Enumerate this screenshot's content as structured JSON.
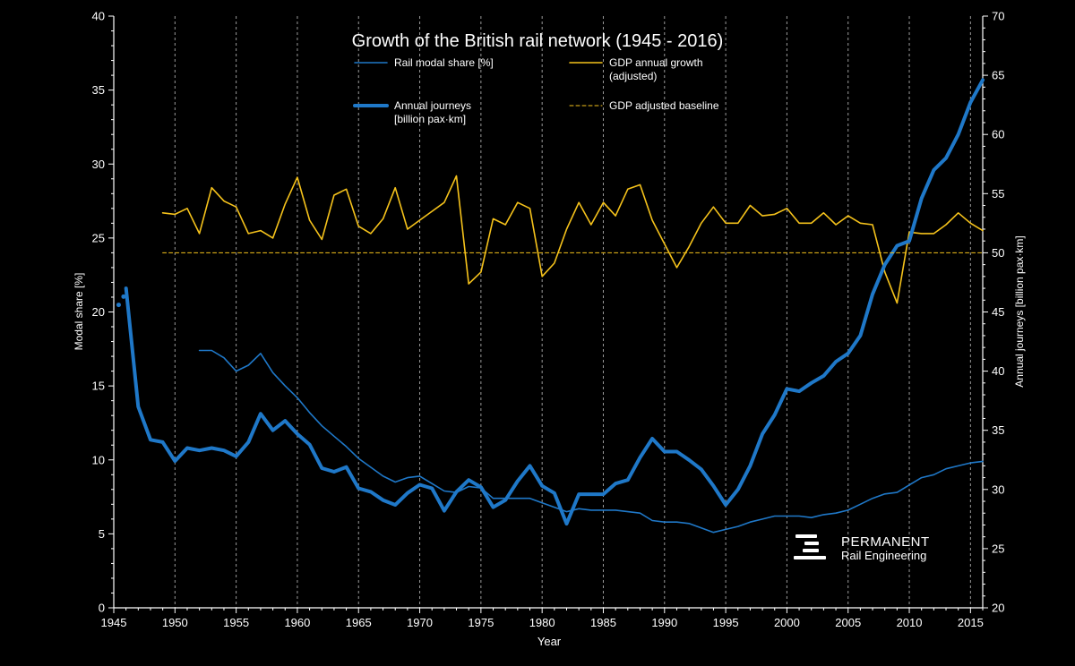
{
  "chart_data": {
    "type": "line",
    "title": "Growth of the British rail network (1945 - 2016)",
    "xlabel": "Year",
    "ylabel_left": "Modal share [%]",
    "ylabel_right": "Annual journeys [billion pax·km]",
    "xlim": [
      1945,
      2016
    ],
    "ylim_left": [
      0,
      40
    ],
    "ylim_right": [
      20,
      70
    ],
    "x_ticks": [
      1945,
      1950,
      1955,
      1960,
      1965,
      1970,
      1975,
      1980,
      1985,
      1990,
      1995,
      2000,
      2005,
      2010,
      2015
    ],
    "y_ticks_left": [
      0,
      5,
      10,
      15,
      20,
      25,
      30,
      35,
      40
    ],
    "y_ticks_right": [
      20,
      25,
      30,
      35,
      40,
      45,
      50,
      55,
      60,
      65,
      70
    ],
    "vertical_gridlines": true,
    "legend": {
      "placement": "top-center",
      "entries": [
        {
          "label_lines": [
            "Rail modal share [%]"
          ],
          "style": "thin-solid",
          "color": "#1f78c8"
        },
        {
          "label_lines": [
            "GDP annual growth",
            "(adjusted)"
          ],
          "style": "thin-solid",
          "color": "#f5c21b"
        },
        {
          "label_lines": [
            "Annual journeys",
            "[billion pax·km]"
          ],
          "style": "thick-solid",
          "color": "#1f78c8"
        },
        {
          "label_lines": [
            "GDP adjusted baseline"
          ],
          "style": "dashed",
          "color": "#f5c21b"
        }
      ]
    },
    "series": [
      {
        "name": "Rail modal share [%]",
        "axis": "left",
        "color": "#1f78c8",
        "x": [
          1952,
          1953,
          1954,
          1955,
          1956,
          1957,
          1958,
          1959,
          1960,
          1961,
          1962,
          1963,
          1964,
          1965,
          1966,
          1967,
          1968,
          1969,
          1970,
          1971,
          1972,
          1973,
          1974,
          1975,
          1976,
          1977,
          1978,
          1979,
          1980,
          1981,
          1982,
          1983,
          1984,
          1985,
          1986,
          1987,
          1988,
          1989,
          1990,
          1991,
          1992,
          1993,
          1994,
          1995,
          1996,
          1997,
          1998,
          1999,
          2000,
          2001,
          2002,
          2003,
          2004,
          2005,
          2006,
          2007,
          2008,
          2009,
          2010,
          2011,
          2012,
          2013,
          2014,
          2015,
          2016
        ],
        "values": [
          17.4,
          17.4,
          16.9,
          16.0,
          16.4,
          17.2,
          15.9,
          15.0,
          14.2,
          13.2,
          12.3,
          11.6,
          10.9,
          10.1,
          9.5,
          8.9,
          8.5,
          8.8,
          8.9,
          8.4,
          7.9,
          7.8,
          8.2,
          8.1,
          7.4,
          7.4,
          7.4,
          7.4,
          7.1,
          6.8,
          6.5,
          6.7,
          6.6,
          6.6,
          6.6,
          6.5,
          6.4,
          5.9,
          5.8,
          5.8,
          5.7,
          5.4,
          5.1,
          5.3,
          5.5,
          5.8,
          6.0,
          6.2,
          6.2,
          6.2,
          6.1,
          6.3,
          6.4,
          6.6,
          7.0,
          7.4,
          7.7,
          7.8,
          8.3,
          8.8,
          9.0,
          9.4,
          9.6,
          9.8,
          9.9
        ]
      },
      {
        "name": "GDP annual growth (adjusted)",
        "axis": "left",
        "color": "#f5c21b",
        "x": [
          1949,
          1950,
          1951,
          1952,
          1953,
          1954,
          1955,
          1956,
          1957,
          1958,
          1959,
          1960,
          1961,
          1962,
          1963,
          1964,
          1965,
          1966,
          1967,
          1968,
          1969,
          1970,
          1971,
          1972,
          1973,
          1974,
          1975,
          1976,
          1977,
          1978,
          1979,
          1980,
          1981,
          1982,
          1983,
          1984,
          1985,
          1986,
          1987,
          1988,
          1989,
          1990,
          1991,
          1992,
          1993,
          1994,
          1995,
          1996,
          1997,
          1998,
          1999,
          2000,
          2001,
          2002,
          2003,
          2004,
          2005,
          2006,
          2007,
          2008,
          2009,
          2010,
          2011,
          2012,
          2013,
          2014,
          2015,
          2016
        ],
        "values": [
          26.7,
          26.6,
          27.0,
          25.3,
          28.4,
          27.5,
          27.1,
          25.3,
          25.5,
          25.0,
          27.3,
          29.1,
          26.2,
          24.9,
          27.9,
          28.3,
          25.8,
          25.3,
          26.3,
          28.4,
          25.6,
          26.2,
          26.8,
          27.4,
          29.2,
          21.9,
          22.7,
          26.3,
          25.9,
          27.4,
          27.0,
          22.4,
          23.3,
          25.6,
          27.4,
          25.9,
          27.4,
          26.5,
          28.3,
          28.6,
          26.2,
          24.6,
          23.0,
          24.4,
          26.0,
          27.1,
          26.0,
          26.0,
          27.2,
          26.5,
          26.6,
          27.0,
          26.0,
          26.0,
          26.7,
          25.9,
          26.5,
          26.0,
          25.9,
          22.7,
          20.6,
          25.4,
          25.3,
          25.3,
          25.9,
          26.7,
          26.0,
          25.5
        ]
      },
      {
        "name": "Annual journeys [billion pax·km]",
        "axis": "right",
        "color": "#1f78c8",
        "x": [
          1946,
          1947,
          1948,
          1949,
          1950,
          1951,
          1952,
          1953,
          1954,
          1955,
          1956,
          1957,
          1958,
          1959,
          1960,
          1961,
          1962,
          1963,
          1964,
          1965,
          1966,
          1967,
          1968,
          1969,
          1970,
          1971,
          1972,
          1973,
          1974,
          1975,
          1976,
          1977,
          1978,
          1979,
          1980,
          1981,
          1982,
          1983,
          1984,
          1985,
          1986,
          1987,
          1988,
          1989,
          1990,
          1991,
          1992,
          1993,
          1994,
          1995,
          1996,
          1997,
          1998,
          1999,
          2000,
          2001,
          2002,
          2003,
          2004,
          2005,
          2006,
          2007,
          2008,
          2009,
          2010,
          2011,
          2012,
          2013,
          2014,
          2015,
          2016
        ],
        "values": [
          47.0,
          37.0,
          34.2,
          34.0,
          32.4,
          33.5,
          33.3,
          33.5,
          33.3,
          32.8,
          34.0,
          36.4,
          35.0,
          35.8,
          34.7,
          33.8,
          31.8,
          31.5,
          31.9,
          30.1,
          29.8,
          29.1,
          28.7,
          29.7,
          30.4,
          30.1,
          28.2,
          29.8,
          30.8,
          30.2,
          28.5,
          29.1,
          30.7,
          32.0,
          30.3,
          29.7,
          27.1,
          29.6,
          29.6,
          29.6,
          30.5,
          30.8,
          32.7,
          34.3,
          33.2,
          33.2,
          32.5,
          31.7,
          30.3,
          28.7,
          30.0,
          32.0,
          34.7,
          36.3,
          38.5,
          38.3,
          39.0,
          39.6,
          40.8,
          41.5,
          43.0,
          46.5,
          49.0,
          50.6,
          51.0,
          54.6,
          57.0,
          58.0,
          60.0,
          62.7,
          64.6
        ]
      },
      {
        "name": "Annual journeys [billion pax·km] (early estimate points)",
        "axis": "right",
        "style": "dots",
        "color": "#1f78c8",
        "x": [
          1945.4,
          1945.8
        ],
        "values": [
          45.6,
          46.3
        ]
      },
      {
        "name": "GDP adjusted baseline",
        "axis": "left",
        "style": "dashed",
        "color": "#f5c21b",
        "x": [
          1949,
          2016
        ],
        "values": [
          24.0,
          24.0
        ]
      }
    ]
  },
  "logo": {
    "line1": "PERMANENT",
    "line2": "Rail Engineering"
  }
}
